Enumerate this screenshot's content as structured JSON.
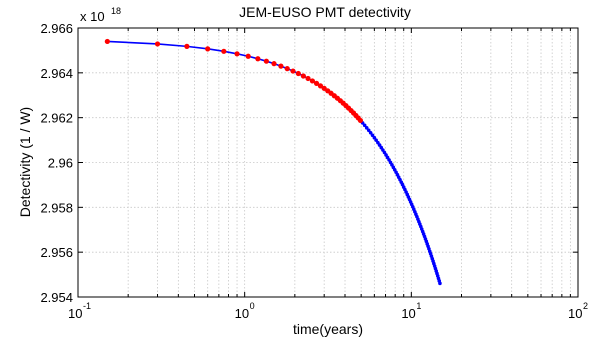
{
  "chart_data": {
    "type": "line",
    "title": "JEM-EUSO PMT detectivity",
    "xlabel": "time(years)",
    "ylabel": "Detectivity (1 / W)",
    "y_multiplier_label": "x 10",
    "y_multiplier_exponent": "18",
    "x_scale": "log",
    "xlim": [
      0.1,
      100
    ],
    "ylim": [
      2.954,
      2.966
    ],
    "grid": true,
    "x_ticks": [
      {
        "base": "10",
        "exp": "-1",
        "value": 0.1
      },
      {
        "base": "10",
        "exp": "0",
        "value": 1
      },
      {
        "base": "10",
        "exp": "1",
        "value": 10
      },
      {
        "base": "10",
        "exp": "2",
        "value": 100
      }
    ],
    "y_ticks": [
      {
        "label": "2.954",
        "value": 2.954
      },
      {
        "label": "2.956",
        "value": 2.956
      },
      {
        "label": "2.958",
        "value": 2.958
      },
      {
        "label": "2.96",
        "value": 2.96
      },
      {
        "label": "2.962",
        "value": 2.962
      },
      {
        "label": "2.964",
        "value": 2.964
      },
      {
        "label": "2.966",
        "value": 2.966
      }
    ],
    "series": [
      {
        "style": "line with dense markers",
        "color": "#0000ff",
        "x_range": [
          0.15,
          14.9
        ],
        "x_start": 0.15,
        "x_step": 0.15,
        "y_start": 2.9654,
        "y_decrease_per_year": 0.000734
      },
      {
        "style": "markers",
        "color": "#ff0000",
        "x_start": 0.15,
        "x_step": 0.15,
        "x_end": 5.0,
        "y_start": 2.9654,
        "y_decrease_per_year": 0.000734
      }
    ]
  }
}
